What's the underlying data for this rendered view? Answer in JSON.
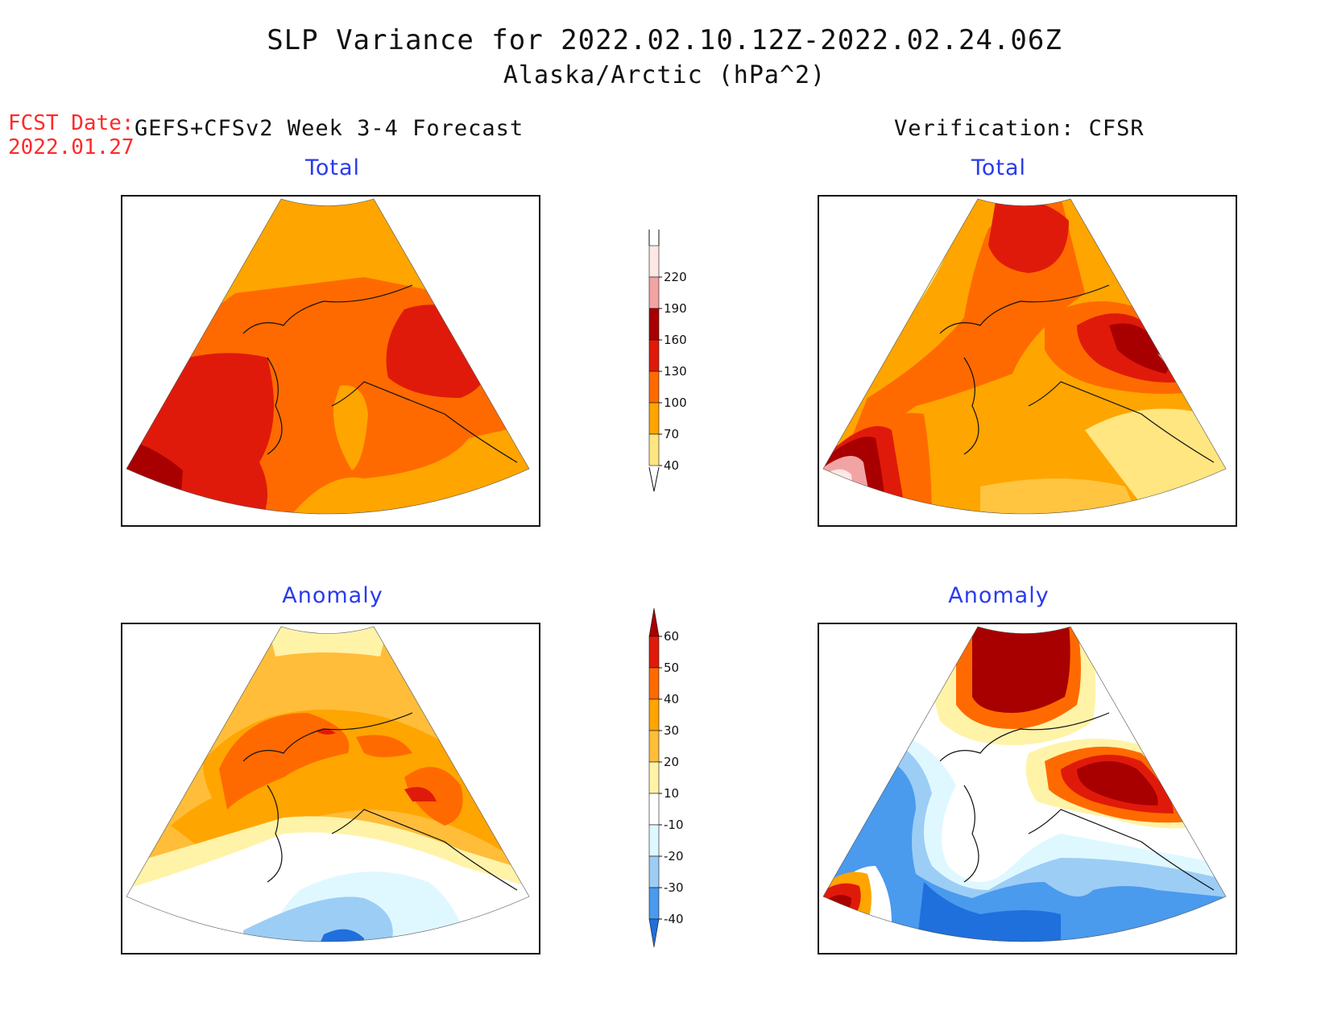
{
  "title": "SLP Variance for 2022.02.10.12Z-2022.02.24.06Z",
  "subtitle": "Alaska/Arctic (hPa^2)",
  "fcst": {
    "label": "FCST Date:",
    "date": "2022.01.27"
  },
  "left_heading": "GEFS+CFSv2 Week 3-4 Forecast",
  "right_heading": "Verification: CFSR",
  "panels": [
    {
      "title": "Total"
    },
    {
      "title": "Total"
    },
    {
      "title": "Anomaly"
    },
    {
      "title": "Anomaly"
    }
  ],
  "colorbars": {
    "total": {
      "labels": [
        "220",
        "190",
        "160",
        "130",
        "100",
        "70",
        "40"
      ],
      "colors": [
        "#fde7e7",
        "#f2a4a4",
        "#a80000",
        "#e01a0a",
        "#ff6a00",
        "#ffa500",
        "#ffe680"
      ]
    },
    "anomaly": {
      "labels": [
        "60",
        "50",
        "40",
        "30",
        "20",
        "10",
        "-10",
        "-20",
        "-30",
        "-40"
      ],
      "colors": [
        "#a80000",
        "#e01a0a",
        "#ff6a00",
        "#ffa500",
        "#ffbd3a",
        "#fff3a8",
        "#ffffff",
        "#dff8ff",
        "#9ccdf5",
        "#4a9aee",
        "#1f6fdd"
      ]
    }
  },
  "colors": {
    "title_text": "#111111",
    "fcst_text": "#ff2a2a",
    "panel_title_text": "#2a3aee"
  }
}
